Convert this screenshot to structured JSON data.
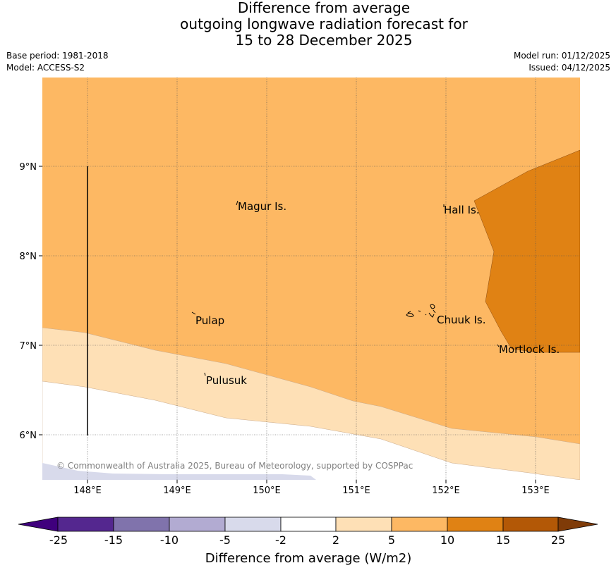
{
  "title": {
    "line1": "Difference from average",
    "line2": "outgoing longwave radiation forecast for",
    "line3": "15 to 28 December 2025"
  },
  "meta": {
    "base_period": "Base period: 1981-2018",
    "model": "Model: ACCESS-S2",
    "model_run": "Model run: 01/12/2025",
    "issued": "Issued: 04/12/2025"
  },
  "map": {
    "latitude_labels": [
      "9°N",
      "8°N",
      "7°N",
      "6°N"
    ],
    "longitude_labels": [
      "148°E",
      "149°E",
      "150°E",
      "151°E",
      "152°E",
      "153°E"
    ],
    "places": [
      "Magur Is.",
      "Hall Is.",
      "Pulap",
      "Chuuk Is.",
      "Mortlock Is.",
      "Pulusuk"
    ],
    "copyright": "© Commonwealth of Australia 2025, Bureau of Meteorology, supported by COSPPac"
  },
  "colorbar": {
    "title": "Difference from average (W/m2)",
    "ticks": [
      "-25",
      "-15",
      "-10",
      "-5",
      "-2",
      "2",
      "5",
      "10",
      "15",
      "25"
    ],
    "colors": {
      "below_-25": "#3f007d",
      "-25_-15": "#54278f",
      "-15_-10": "#8073ac",
      "-10_-5": "#b2abd2",
      "-5_-2": "#d8daeb",
      "-2_2": "#ffffff",
      "2_5": "#fee0b6",
      "5_10": "#fdb863",
      "10_15": "#e08214",
      "15_25": "#b35806",
      "above_25": "#7f3b08"
    }
  }
}
